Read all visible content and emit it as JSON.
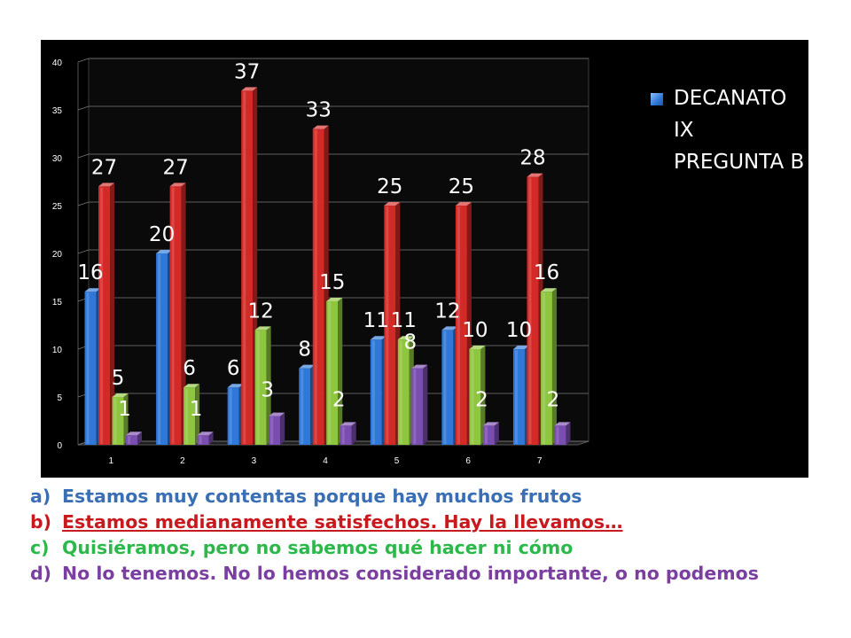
{
  "chart_data": {
    "type": "bar",
    "categories": [
      "1",
      "2",
      "3",
      "4",
      "5",
      "6",
      "7"
    ],
    "series": [
      {
        "values": [
          16,
          20,
          6,
          8,
          11,
          12,
          10
        ],
        "color": "#2f78d8"
      },
      {
        "values": [
          27,
          27,
          37,
          33,
          25,
          25,
          28
        ],
        "color": "#d42a27"
      },
      {
        "values": [
          5,
          6,
          12,
          15,
          11,
          10,
          16
        ],
        "color": "#8ec63f"
      },
      {
        "values": [
          1,
          1,
          3,
          2,
          8,
          2,
          2
        ],
        "color": "#7a4db0"
      }
    ],
    "data_labels": [
      [
        "16",
        "20",
        "6",
        "8",
        "11",
        "12",
        "10"
      ],
      [
        "27",
        "27",
        "37",
        "33",
        "25",
        "25",
        "28"
      ],
      [
        "5",
        "6",
        "12",
        "15",
        "11",
        "10",
        "16"
      ],
      [
        "1",
        "1",
        "3",
        "2",
        "8",
        "2",
        "2"
      ]
    ],
    "yticks": [
      "0",
      "5",
      "10",
      "15",
      "20",
      "25",
      "30",
      "35",
      "40"
    ],
    "ylim": [
      0,
      40
    ],
    "grid": true,
    "legend": {
      "label": "DECANATO IX PREGUNTA B",
      "position": "right",
      "swatch_color": "#2f78d8"
    },
    "background": "#000000"
  },
  "notes": [
    {
      "marker": "a)",
      "text": "Estamos muy contentas porque hay muchos frutos"
    },
    {
      "marker": "b)",
      "text": "Estamos medianamente satisfechos. Hay la llevamos…"
    },
    {
      "marker": "c)",
      "text": "Quisiéramos, pero no sabemos qué hacer ni cómo"
    },
    {
      "marker": "d)",
      "text": "No lo tenemos. No lo hemos considerado importante, o no podemos"
    }
  ]
}
